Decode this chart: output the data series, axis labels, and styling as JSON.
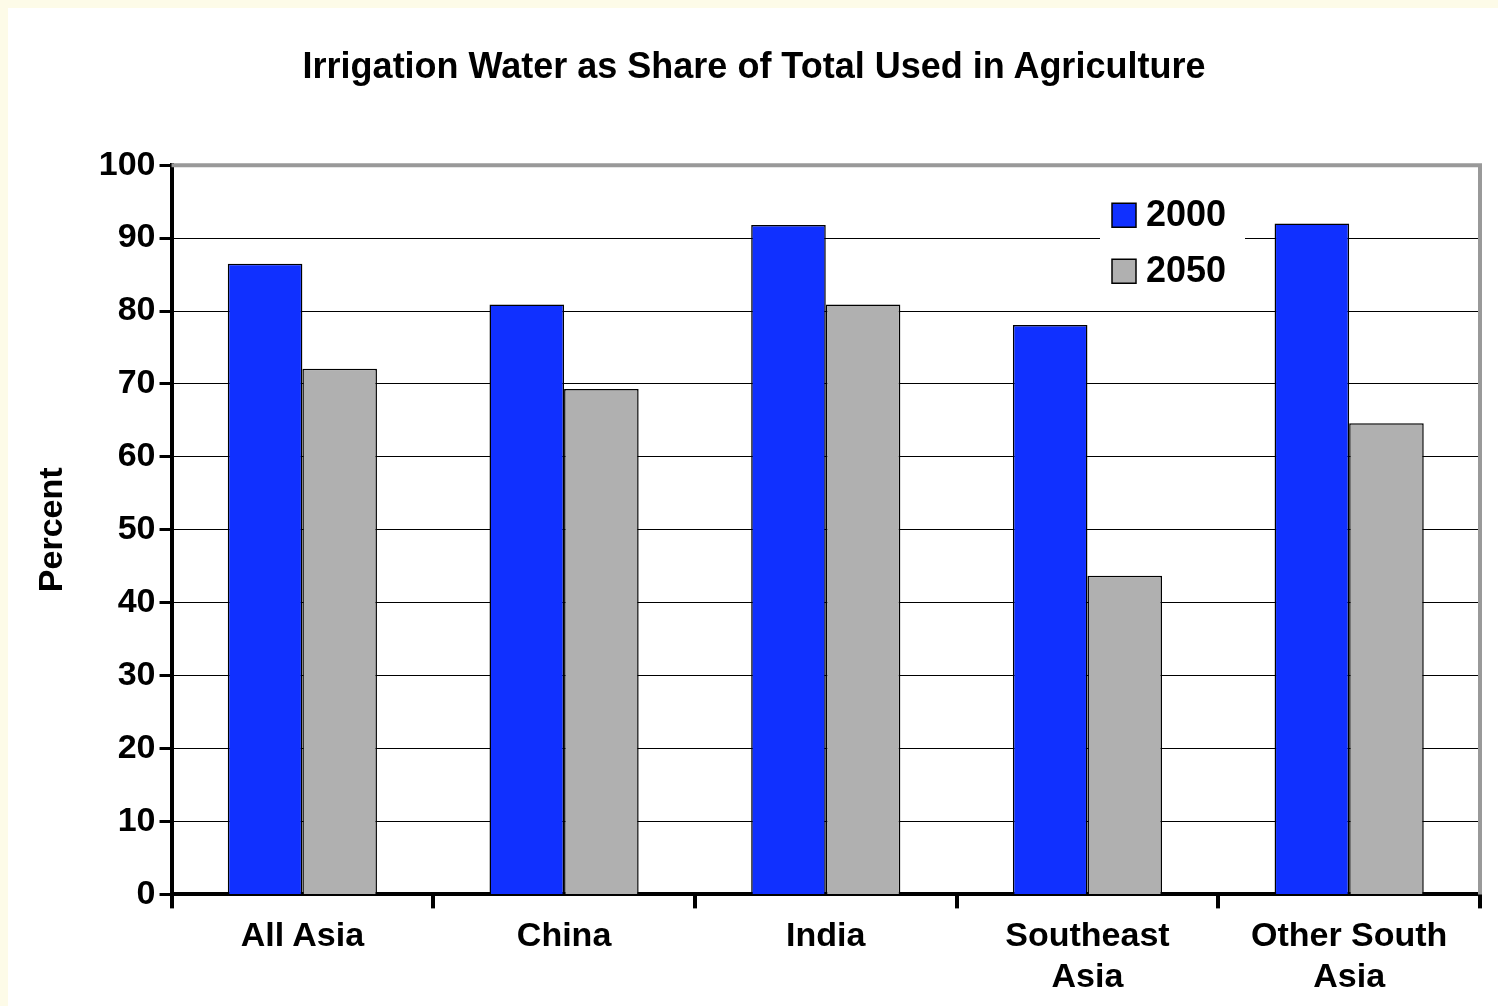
{
  "chart_data": {
    "type": "bar",
    "title": "Irrigation Water as Share of Total Used in Agriculture",
    "ylabel": "Percent",
    "categories": [
      "All Asia",
      "China",
      "India",
      "Southeast Asia",
      "Other South Asia"
    ],
    "series": [
      {
        "name": "2000",
        "color": "#1030ff",
        "values": [
          86.5,
          80.9,
          91.8,
          78.1,
          92.0
        ]
      },
      {
        "name": "2050",
        "color": "#b0b0b0",
        "values": [
          72.1,
          69.3,
          80.9,
          43.7,
          64.6
        ]
      }
    ],
    "ylim": [
      0,
      100
    ],
    "yticks": [
      0,
      10,
      20,
      30,
      40,
      50,
      60,
      70,
      80,
      90,
      100
    ],
    "grid": "y",
    "legend": "top right"
  }
}
